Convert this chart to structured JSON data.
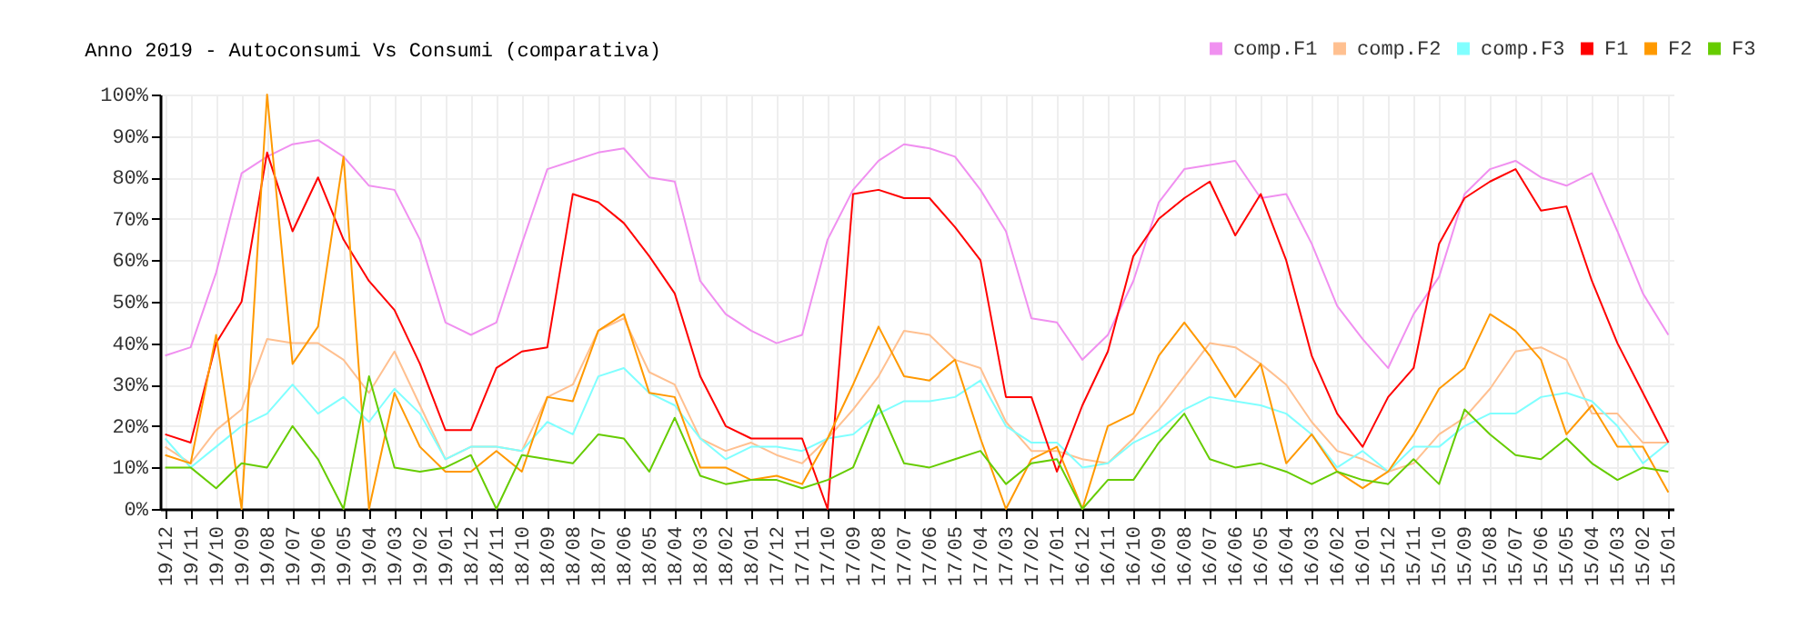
{
  "chart_data": {
    "type": "line",
    "title": "Anno 2019 - Autoconsumi Vs Consumi (comparativa)",
    "categories": [
      "19/12",
      "19/11",
      "19/10",
      "19/09",
      "19/08",
      "19/07",
      "19/06",
      "19/05",
      "19/04",
      "19/03",
      "19/02",
      "19/01",
      "18/12",
      "18/11",
      "18/10",
      "18/09",
      "18/08",
      "18/07",
      "18/06",
      "18/05",
      "18/04",
      "18/03",
      "18/02",
      "18/01",
      "17/12",
      "17/11",
      "17/10",
      "17/09",
      "17/08",
      "17/07",
      "17/06",
      "17/05",
      "17/04",
      "17/03",
      "17/02",
      "17/01",
      "16/12",
      "16/11",
      "16/10",
      "16/09",
      "16/08",
      "16/07",
      "16/06",
      "16/05",
      "16/04",
      "16/03",
      "16/02",
      "16/01",
      "15/12",
      "15/11",
      "15/10",
      "15/09",
      "15/08",
      "15/07",
      "15/06",
      "15/05",
      "15/04",
      "15/03",
      "15/02",
      "15/01"
    ],
    "series": [
      {
        "name": "comp.F1",
        "color": "#f090f0",
        "values": [
          37,
          39,
          57,
          81,
          85,
          88,
          89,
          85,
          78,
          77,
          65,
          45,
          42,
          45,
          64,
          82,
          84,
          86,
          87,
          80,
          79,
          55,
          47,
          43,
          40,
          42,
          65,
          77,
          84,
          88,
          87,
          85,
          77,
          67,
          46,
          45,
          36,
          42,
          55,
          74,
          82,
          83,
          84,
          75,
          76,
          64,
          49,
          41,
          34,
          47,
          56,
          76,
          82,
          84,
          80,
          78,
          81,
          67,
          52,
          42
        ]
      },
      {
        "name": "comp.F2",
        "color": "#ffc090",
        "values": [
          15,
          11,
          19,
          24,
          41,
          40,
          40,
          36,
          28,
          38,
          25,
          12,
          15,
          15,
          14,
          27,
          30,
          43,
          46,
          33,
          30,
          17,
          14,
          16,
          13,
          11,
          17,
          24,
          32,
          43,
          42,
          36,
          34,
          21,
          14,
          14,
          12,
          11,
          17,
          24,
          32,
          40,
          39,
          35,
          30,
          21,
          14,
          12,
          9,
          11,
          18,
          22,
          29,
          38,
          39,
          36,
          23,
          23,
          16,
          16
        ]
      },
      {
        "name": "comp.F3",
        "color": "#80ffff",
        "values": [
          17,
          10,
          15,
          20,
          23,
          30,
          23,
          27,
          21,
          29,
          23,
          12,
          15,
          15,
          14,
          21,
          18,
          32,
          34,
          28,
          25,
          17,
          12,
          15,
          15,
          14,
          17,
          18,
          23,
          26,
          26,
          27,
          31,
          20,
          16,
          16,
          10,
          11,
          16,
          19,
          24,
          27,
          26,
          25,
          23,
          18,
          10,
          14,
          9,
          15,
          15,
          20,
          23,
          23,
          27,
          28,
          26,
          20,
          11,
          16
        ]
      },
      {
        "name": "F1",
        "color": "#ff0000",
        "values": [
          18,
          16,
          40,
          50,
          86,
          67,
          80,
          65,
          55,
          48,
          35,
          19,
          19,
          34,
          38,
          39,
          76,
          74,
          69,
          61,
          52,
          32,
          20,
          17,
          17,
          17,
          0,
          76,
          77,
          75,
          75,
          68,
          60,
          27,
          27,
          9,
          25,
          38,
          61,
          70,
          75,
          79,
          66,
          76,
          60,
          37,
          23,
          15,
          27,
          34,
          64,
          75,
          79,
          82,
          72,
          73,
          55,
          40,
          28,
          16
        ]
      },
      {
        "name": "F2",
        "color": "#ff9900",
        "values": [
          13,
          11,
          42,
          0,
          100,
          35,
          44,
          85,
          0,
          28,
          15,
          9,
          9,
          14,
          9,
          27,
          26,
          43,
          47,
          28,
          27,
          10,
          10,
          7,
          8,
          6,
          17,
          30,
          44,
          32,
          31,
          36,
          17,
          0,
          12,
          15,
          0,
          20,
          23,
          37,
          45,
          37,
          27,
          35,
          11,
          18,
          9,
          5,
          9,
          18,
          29,
          34,
          47,
          43,
          36,
          18,
          25,
          15,
          15,
          4
        ]
      },
      {
        "name": "F3",
        "color": "#66cc00",
        "values": [
          10,
          10,
          5,
          11,
          10,
          20,
          12,
          0,
          32,
          10,
          9,
          10,
          13,
          0,
          13,
          12,
          11,
          18,
          17,
          9,
          22,
          8,
          6,
          7,
          7,
          5,
          7,
          10,
          25,
          11,
          10,
          12,
          14,
          6,
          11,
          12,
          0,
          7,
          7,
          16,
          23,
          12,
          10,
          11,
          9,
          6,
          9,
          7,
          6,
          12,
          6,
          24,
          18,
          13,
          12,
          17,
          11,
          7,
          10,
          9
        ]
      }
    ],
    "ylim": [
      0,
      100
    ],
    "yticks": [
      {
        "value": 0,
        "label": "0%"
      },
      {
        "value": 10,
        "label": "10%"
      },
      {
        "value": 20,
        "label": "20%"
      },
      {
        "value": 30,
        "label": "30%"
      },
      {
        "value": 40,
        "label": "40%"
      },
      {
        "value": 50,
        "label": "50%"
      },
      {
        "value": 60,
        "label": "60%"
      },
      {
        "value": 70,
        "label": "70%"
      },
      {
        "value": 80,
        "label": "80%"
      },
      {
        "value": 90,
        "label": "90%"
      },
      {
        "value": 100,
        "label": "100%"
      }
    ],
    "grid": true,
    "legend": "top right",
    "marker": "none",
    "line_style": "solid"
  }
}
